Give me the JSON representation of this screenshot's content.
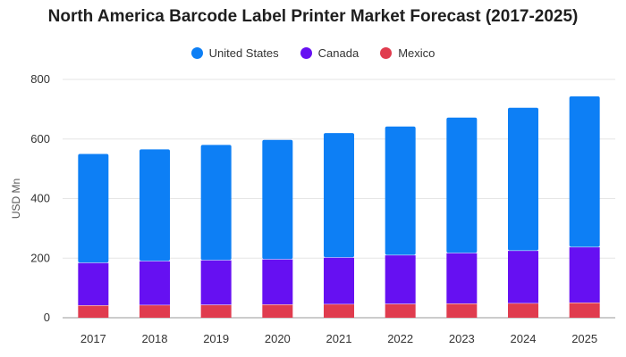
{
  "chart_data": {
    "type": "bar",
    "stacked": true,
    "title": "North America Barcode Label Printer Market Forecast (2017-2025)",
    "xlabel": "",
    "ylabel": "USD Mn",
    "ylim": [
      0,
      800
    ],
    "yticks": [
      0,
      200,
      400,
      600,
      800
    ],
    "grid": true,
    "legend_position": "top",
    "categories": [
      "2017",
      "2018",
      "2019",
      "2020",
      "2021",
      "2022",
      "2023",
      "2024",
      "2025"
    ],
    "series": [
      {
        "name": "Mexico",
        "color": "#e03c4e",
        "values": [
          42,
          43,
          44,
          45,
          46,
          47,
          48,
          49,
          51
        ]
      },
      {
        "name": "Canada",
        "color": "#6610f2",
        "values": [
          143,
          148,
          150,
          152,
          157,
          164,
          170,
          177,
          187
        ]
      },
      {
        "name": "United States",
        "color": "#0d7ff5",
        "values": [
          365,
          374,
          386,
          400,
          417,
          431,
          454,
          479,
          505
        ]
      }
    ]
  }
}
